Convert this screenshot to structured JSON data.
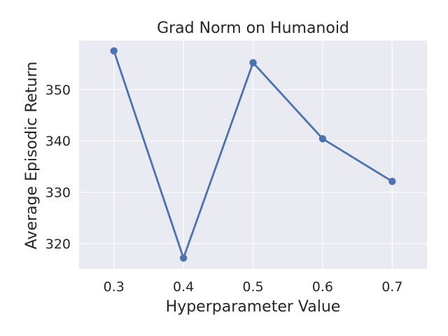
{
  "chart_data": {
    "type": "line",
    "title": "Grad Norm on Humanoid",
    "xlabel": "Hyperparameter Value",
    "ylabel": "Average Episodic Return",
    "x": [
      0.3,
      0.4,
      0.5,
      0.6,
      0.7
    ],
    "x_tick_labels": [
      "0.3",
      "0.4",
      "0.5",
      "0.6",
      "0.7"
    ],
    "y_ticks": [
      320,
      330,
      340,
      350
    ],
    "y_tick_labels": [
      "320",
      "330",
      "340",
      "350"
    ],
    "xlim": [
      0.25,
      0.75
    ],
    "ylim": [
      315.1,
      359.5
    ],
    "series": [
      {
        "values": [
          357.5,
          317.2,
          355.2,
          340.4,
          332.1
        ]
      }
    ],
    "grid": true,
    "style": "seaborn-darkgrid",
    "colors": {
      "line": "#4c72b0",
      "plot_background": "#eaeaf2",
      "grid": "#ffffff",
      "text": "#262626"
    }
  }
}
